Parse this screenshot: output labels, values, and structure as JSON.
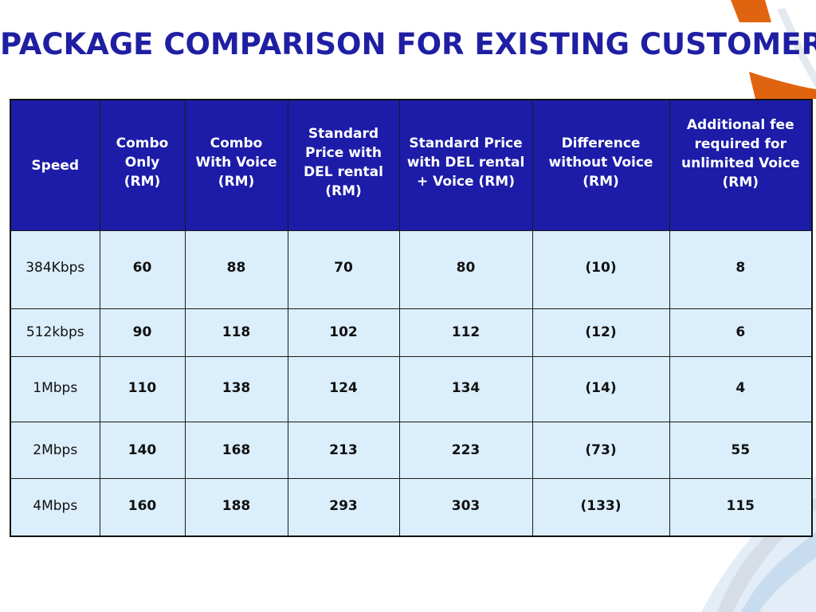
{
  "slide": {
    "title": "PACKAGE COMPARISON FOR EXISTING CUSTOMER"
  },
  "colors": {
    "title": "#1f1fa3",
    "header_bg": "#1c1ca8",
    "cell_bg": "#dbeefb",
    "accent_orange": "#e06410",
    "accent_blue": "#1f4fa8"
  },
  "table": {
    "headers": {
      "speed": "Speed",
      "combo_only": [
        "Combo",
        "Only",
        "(RM)"
      ],
      "combo_voice": [
        "Combo",
        "With Voice",
        "(RM)"
      ],
      "standard_del": [
        "Standard",
        "Price with",
        "DEL rental",
        "(RM)"
      ],
      "standard_del_voice": [
        "Standard Price",
        "with DEL rental",
        "+ Voice (RM)"
      ],
      "difference": [
        "Difference",
        "without Voice",
        "(RM)"
      ],
      "additional_fee": [
        "Additional fee",
        "required for",
        "unlimited Voice",
        "(RM)"
      ]
    },
    "rows": [
      {
        "speed": "384Kbps",
        "combo_only": "60",
        "combo_voice": "88",
        "standard_del": "70",
        "standard_del_voice": "80",
        "difference": "(10)",
        "additional_fee": "8"
      },
      {
        "speed": "512kbps",
        "combo_only": "90",
        "combo_voice": "118",
        "standard_del": "102",
        "standard_del_voice": "112",
        "difference": "(12)",
        "additional_fee": "6"
      },
      {
        "speed": "1Mbps",
        "combo_only": "110",
        "combo_voice": "138",
        "standard_del": "124",
        "standard_del_voice": "134",
        "difference": "(14)",
        "additional_fee": "4"
      },
      {
        "speed": "2Mbps",
        "combo_only": "140",
        "combo_voice": "168",
        "standard_del": "213",
        "standard_del_voice": "223",
        "difference": "(73)",
        "additional_fee": "55"
      },
      {
        "speed": "4Mbps",
        "combo_only": "160",
        "combo_voice": "188",
        "standard_del": "293",
        "standard_del_voice": "303",
        "difference": "(133)",
        "additional_fee": "115"
      }
    ]
  }
}
